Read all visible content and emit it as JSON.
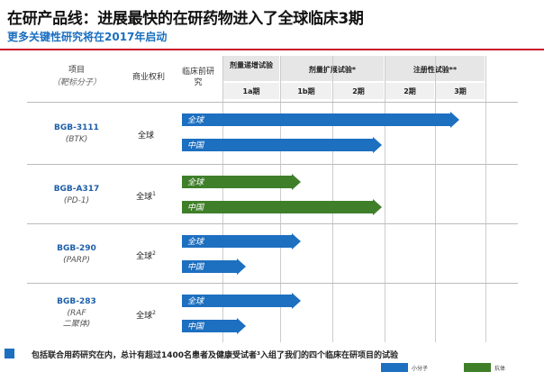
{
  "header": {
    "title": "在研产品线：进展最快的在研药物进入了全球临床3期",
    "subtitle": "更多关键性研究将在2017年启动"
  },
  "columns": {
    "project": "项目",
    "target": "（靶标分子）",
    "rights": "商业权利",
    "preclinical": "临床前研究",
    "dose_escalation": "剂量递增试验",
    "dose_expansion": "剂量扩展试验*",
    "pivotal": "注册性试验**",
    "phase_1a": "1a期",
    "phase_1b": "1b期",
    "phase_2a": "2期",
    "phase_2b": "2期",
    "phase_3": "3期"
  },
  "rows": [
    {
      "drug": "BGB-3111",
      "target": "(BTK)",
      "rights": "全球",
      "sup": "",
      "bars": [
        {
          "label": "全球",
          "type": "small-molecule",
          "progress": 1.0
        },
        {
          "label": "中国",
          "type": "small-molecule",
          "progress": 0.72
        }
      ]
    },
    {
      "drug": "BGB-A317",
      "target": "(PD-1)",
      "rights": "全球",
      "sup": "1",
      "bars": [
        {
          "label": "全球",
          "type": "antibody",
          "progress": 0.43
        },
        {
          "label": "中国",
          "type": "antibody",
          "progress": 0.72
        }
      ]
    },
    {
      "drug": "BGB-290",
      "target": "(PARP)",
      "rights": "全球",
      "sup": "2",
      "bars": [
        {
          "label": "全球",
          "type": "small-molecule",
          "progress": 0.43
        },
        {
          "label": "中国",
          "type": "small-molecule",
          "progress": 0.23
        }
      ]
    },
    {
      "drug": "BGB-283",
      "target": "(RAF\n二聚体)",
      "rights": "全球",
      "sup": "2",
      "bars": [
        {
          "label": "全球",
          "type": "small-molecule",
          "progress": 0.43
        },
        {
          "label": "中国",
          "type": "small-molecule",
          "progress": 0.23
        }
      ]
    }
  ],
  "footer": {
    "note": "包括联合用药研究在内，总计有超过1400名患者及健康受试者³入组了我们的四个临床在研项目的试验",
    "legend_small_molecule": "小分子",
    "legend_antibody": "抗体"
  },
  "colors": {
    "small_molecule": "#1d6fc0",
    "antibody": "#3f7f2a"
  }
}
